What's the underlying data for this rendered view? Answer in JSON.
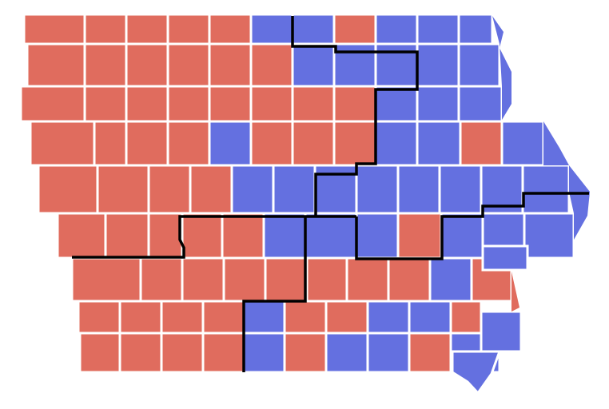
{
  "map": {
    "colors": {
      "R": "#e06c5e",
      "B": "#6470e0",
      "border": "#ffffff",
      "district_line": "#000000"
    },
    "county_rows": [
      [
        "R",
        "R",
        "R",
        "R",
        "R",
        "B",
        "B",
        "R",
        "B",
        "B",
        "B"
      ],
      [
        "R",
        "R",
        "R",
        "R",
        "R",
        "R",
        "B",
        "B",
        "B",
        "B",
        "B"
      ],
      [
        "R",
        "R",
        "R",
        "R",
        "R",
        "R",
        "R",
        "R",
        "B",
        "B",
        "B"
      ],
      [
        "R",
        "R",
        "R",
        "R",
        "B",
        "R",
        "R",
        "R",
        "B",
        "B",
        "R",
        "B"
      ],
      [
        "R",
        "R",
        "R",
        "R",
        "B",
        "B",
        "B",
        "B",
        "B",
        "B",
        "B",
        "B"
      ],
      [
        "R",
        "R",
        "R",
        "R",
        "R",
        "B",
        "B",
        "B",
        "R",
        "B",
        "B",
        "B"
      ],
      [
        "R",
        "R",
        "R",
        "R",
        "R",
        "R",
        "R",
        "R",
        "B",
        "R"
      ],
      [
        "R",
        "R",
        "R",
        "R",
        "B",
        "R",
        "R",
        "B",
        "B",
        "R"
      ],
      [
        "R",
        "R",
        "R",
        "R",
        "B",
        "R",
        "B",
        "B",
        "R",
        "B"
      ]
    ],
    "extra_counties": [
      "B",
      "B"
    ]
  }
}
